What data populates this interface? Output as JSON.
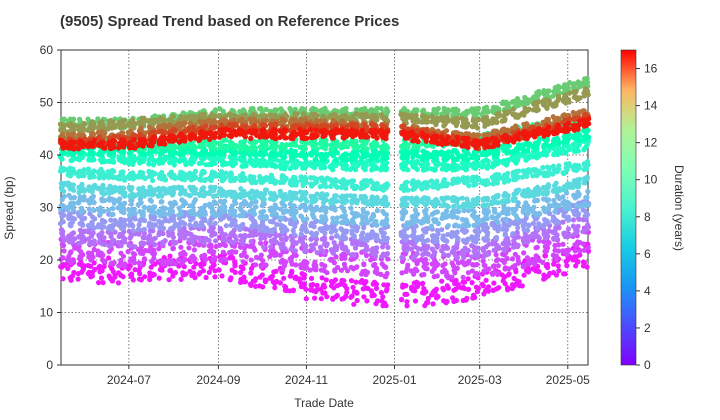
{
  "chart_data": {
    "type": "scatter",
    "title": "(9505)   Spread Trend based on Reference Prices",
    "xlabel": "Trade Date",
    "ylabel": "Spread (bp)",
    "x_range": [
      "2024-05-15",
      "2025-05-15"
    ],
    "ylim": [
      0,
      60
    ],
    "x_ticks": [
      {
        "label": "2024-07",
        "date": "2024-07-01"
      },
      {
        "label": "2024-09",
        "date": "2024-09-01"
      },
      {
        "label": "2024-11",
        "date": "2024-11-01"
      },
      {
        "label": "2025-01",
        "date": "2025-01-01"
      },
      {
        "label": "2025-03",
        "date": "2025-03-01"
      },
      {
        "label": "2025-05",
        "date": "2025-05-01"
      }
    ],
    "y_ticks": [
      0,
      10,
      20,
      30,
      40,
      50,
      60
    ],
    "grid": true,
    "colorbar": {
      "label": "Duration (years)",
      "range": [
        0,
        17
      ],
      "ticks": [
        0,
        2,
        4,
        6,
        8,
        10,
        12,
        14,
        16
      ],
      "colormap": "rainbow"
    },
    "series": [
      {
        "duration": 0.5,
        "points": [
          [
            "2024-05-15",
            18
          ],
          [
            "2024-07-01",
            18
          ],
          [
            "2024-09-01",
            19
          ],
          [
            "2024-11-01",
            15
          ],
          [
            "2025-01-01",
            13
          ],
          [
            "2025-03-01",
            15
          ],
          [
            "2025-05-15",
            21
          ]
        ]
      },
      {
        "duration": 1.5,
        "points": [
          [
            "2024-05-15",
            22
          ],
          [
            "2024-07-01",
            21
          ],
          [
            "2024-09-01",
            22
          ],
          [
            "2024-11-01",
            20
          ],
          [
            "2025-01-01",
            19
          ],
          [
            "2025-03-01",
            19
          ],
          [
            "2025-05-15",
            24
          ]
        ]
      },
      {
        "duration": 2.5,
        "points": [
          [
            "2024-05-15",
            25
          ],
          [
            "2024-07-01",
            24
          ],
          [
            "2024-09-01",
            25
          ],
          [
            "2024-11-01",
            23
          ],
          [
            "2025-01-01",
            22
          ],
          [
            "2025-03-01",
            22
          ],
          [
            "2025-05-15",
            27
          ]
        ]
      },
      {
        "duration": 3.5,
        "points": [
          [
            "2024-05-15",
            28
          ],
          [
            "2024-07-01",
            27
          ],
          [
            "2024-09-01",
            28
          ],
          [
            "2024-11-01",
            26
          ],
          [
            "2025-01-01",
            25
          ],
          [
            "2025-03-01",
            25
          ],
          [
            "2025-05-15",
            30
          ]
        ]
      },
      {
        "duration": 4.5,
        "points": [
          [
            "2024-05-15",
            31
          ],
          [
            "2024-07-01",
            30
          ],
          [
            "2024-09-01",
            30
          ],
          [
            "2024-11-01",
            29
          ],
          [
            "2025-01-01",
            28
          ],
          [
            "2025-03-01",
            28
          ],
          [
            "2025-05-15",
            32
          ]
        ]
      },
      {
        "duration": 5.5,
        "points": [
          [
            "2024-05-15",
            34
          ],
          [
            "2024-07-01",
            33
          ],
          [
            "2024-09-01",
            33
          ],
          [
            "2024-11-01",
            32
          ],
          [
            "2025-01-01",
            31
          ],
          [
            "2025-03-01",
            31
          ],
          [
            "2025-05-15",
            35
          ]
        ]
      },
      {
        "duration": 6.5,
        "points": [
          [
            "2024-05-15",
            37
          ],
          [
            "2024-07-01",
            36
          ],
          [
            "2024-09-01",
            36
          ],
          [
            "2024-11-01",
            35
          ],
          [
            "2025-01-01",
            34
          ],
          [
            "2025-03-01",
            35
          ],
          [
            "2025-05-15",
            38
          ]
        ]
      },
      {
        "duration": 7.5,
        "points": [
          [
            "2024-05-15",
            40
          ],
          [
            "2024-07-01",
            39
          ],
          [
            "2024-09-01",
            39
          ],
          [
            "2024-11-01",
            38
          ],
          [
            "2025-01-01",
            38
          ],
          [
            "2025-03-01",
            38
          ],
          [
            "2025-05-15",
            42
          ]
        ]
      },
      {
        "duration": 8.5,
        "points": [
          [
            "2024-05-15",
            41
          ],
          [
            "2024-07-01",
            41
          ],
          [
            "2024-09-01",
            41
          ],
          [
            "2024-11-01",
            40
          ],
          [
            "2025-01-01",
            40
          ],
          [
            "2025-03-01",
            40
          ],
          [
            "2025-05-15",
            44
          ]
        ]
      },
      {
        "duration": 9.5,
        "points": [
          [
            "2024-05-15",
            43
          ],
          [
            "2024-07-01",
            42
          ],
          [
            "2024-09-01",
            42
          ],
          [
            "2024-11-01",
            42
          ],
          [
            "2025-01-01",
            42
          ],
          [
            "2025-03-01",
            43
          ],
          [
            "2025-05-15",
            47
          ]
        ]
      },
      {
        "duration": 12.0,
        "points": [
          [
            "2024-05-15",
            46
          ],
          [
            "2024-07-01",
            46
          ],
          [
            "2024-09-01",
            48
          ],
          [
            "2024-11-01",
            48
          ],
          [
            "2025-01-01",
            48
          ],
          [
            "2025-03-01",
            48
          ],
          [
            "2025-05-15",
            54
          ]
        ]
      },
      {
        "duration": 13.5,
        "points": [
          [
            "2024-05-15",
            45
          ],
          [
            "2024-07-01",
            46
          ],
          [
            "2024-09-01",
            47
          ],
          [
            "2024-11-01",
            47
          ],
          [
            "2025-01-01",
            47
          ],
          [
            "2025-03-01",
            46
          ],
          [
            "2025-05-15",
            52
          ]
        ]
      },
      {
        "duration": 14.5,
        "points": [
          [
            "2024-05-15",
            43
          ],
          [
            "2024-07-01",
            44
          ],
          [
            "2024-09-01",
            46
          ],
          [
            "2024-11-01",
            46
          ],
          [
            "2025-01-01",
            45
          ],
          [
            "2025-03-01",
            43
          ],
          [
            "2025-05-15",
            48
          ]
        ]
      },
      {
        "duration": 15.5,
        "points": [
          [
            "2024-05-15",
            42
          ],
          [
            "2024-07-01",
            43
          ],
          [
            "2024-09-01",
            45
          ],
          [
            "2024-11-01",
            45
          ],
          [
            "2025-01-01",
            45
          ],
          [
            "2025-03-01",
            42
          ],
          [
            "2025-05-15",
            47
          ]
        ]
      },
      {
        "duration": 16.5,
        "points": [
          [
            "2024-05-15",
            42
          ],
          [
            "2024-07-01",
            42
          ],
          [
            "2024-09-01",
            44
          ],
          [
            "2024-11-01",
            44
          ],
          [
            "2025-01-01",
            44
          ],
          [
            "2025-03-01",
            42
          ],
          [
            "2025-05-15",
            46
          ]
        ]
      }
    ]
  }
}
